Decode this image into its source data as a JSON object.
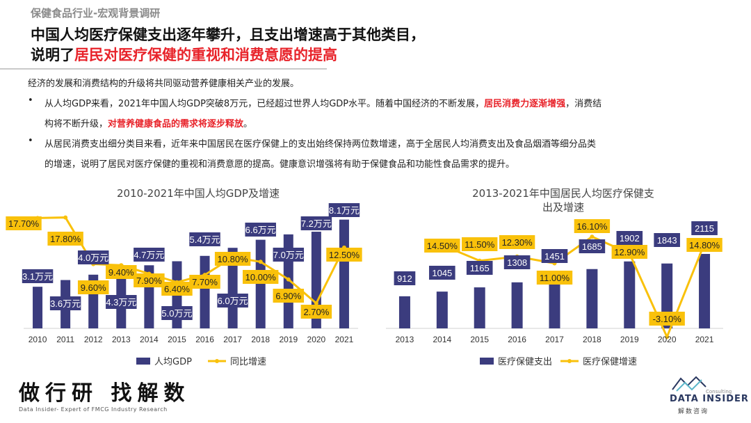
{
  "header": {
    "kicker": "保健食品行业-宏观背景调研",
    "title_line1": "中国人均医疗保健支出逐年攀升，且支出增速高于其他类目，",
    "title_line2_plain": "说明了",
    "title_line2_highlight": "居民对医疗保健的重视和消费意愿的提高"
  },
  "body": {
    "intro": "经济的发展和消费结构的升级将共同驱动营养健康相关产业的发展。",
    "bullet_symbol": "•",
    "bullet1_a": "从人均GDP来看，2021年中国人均GDP突破8万元，已经超过世界人均GDP水平。随着中国经济的不断发展，",
    "bullet1_red1": "居民消费力逐渐增强",
    "bullet1_b": "，消费结",
    "bullet1_c": "构将不断升级，",
    "bullet1_red2": "对营养健康食品的需求将逐步释放",
    "bullet1_d": "。",
    "bullet2_a": "从居民消费支出细分类目来看，近年来中国居民在医疗保健上的支出始终保持两位数增速，高于全居民人均消费支出及食品烟酒等细分品类",
    "bullet2_b": "的增速，说明了居民对医疗保健的重视和消费意愿的提高。健康意识增强将有助于保健食品和功能性食品需求的提升。"
  },
  "colors": {
    "bar": "#3b3c7e",
    "line": "#f9c10b",
    "accent_red": "#e8232a"
  },
  "chart_data": [
    {
      "type": "bar",
      "title": "2010-2021年中国人均GDP及增速",
      "categories": [
        "2010",
        "2011",
        "2012",
        "2013",
        "2014",
        "2015",
        "2016",
        "2017",
        "2018",
        "2019",
        "2020",
        "2021"
      ],
      "series": [
        {
          "name": "人均GDP",
          "kind": "bar",
          "values": [
            3.1,
            3.6,
            4.0,
            4.3,
            4.7,
            5.0,
            5.4,
            6.0,
            6.6,
            7.0,
            7.2,
            8.1
          ],
          "labels": [
            "3.1万元",
            "3.6万元",
            "4.0万元",
            "4.3万元",
            "4.7万元",
            "5.0万元",
            "5.4万元",
            "6.0万元",
            "6.6万元",
            "7.0万元",
            "7.2万元",
            "8.1万元"
          ]
        },
        {
          "name": "同比增速",
          "kind": "line",
          "values": [
            17.7,
            17.8,
            9.6,
            9.4,
            7.9,
            6.4,
            7.7,
            10.8,
            10.0,
            6.9,
            2.7,
            12.5
          ],
          "labels": [
            "17.70%",
            "17.80%",
            "9.60%",
            "9.40%",
            "7.90%",
            "6.40%",
            "7.70%",
            "10.80%",
            "10.00%",
            "6.90%",
            "2.70%",
            "12.50%"
          ]
        }
      ],
      "legend_position": "bottom"
    },
    {
      "type": "bar",
      "title": "2013-2021年中国居民人均医疗保健支出及增速",
      "categories": [
        "2013",
        "2014",
        "2015",
        "2016",
        "2017",
        "2018",
        "2019",
        "2020",
        "2021"
      ],
      "series": [
        {
          "name": "医疗保健支出",
          "kind": "bar",
          "values": [
            912,
            1045,
            1165,
            1308,
            1451,
            1685,
            1902,
            1843,
            2115
          ],
          "labels": [
            "912",
            "1045",
            "1165",
            "1308",
            "1451",
            "1685",
            "1902",
            "1843",
            "2115"
          ]
        },
        {
          "name": "医疗保健增速",
          "kind": "line",
          "values": [
            null,
            14.5,
            11.5,
            12.3,
            11.0,
            16.1,
            12.9,
            -3.1,
            14.8
          ],
          "labels": [
            "",
            "14.50%",
            "11.50%",
            "12.30%",
            "11.00%",
            "16.10%",
            "12.90%",
            "-3.10%",
            "14.80%"
          ]
        }
      ],
      "legend_position": "bottom"
    }
  ],
  "chart_titles": {
    "left": "2010-2021年中国人均GDP及增速",
    "right_line1": "2013-2021年中国居民人均医疗保健支",
    "right_line2": "出及增速"
  },
  "footer": {
    "slogan": "做行研 找解数",
    "tagline": "Data Insider- Expert of FMCG Industry Research",
    "logo_word": "DATA INSIDER",
    "logo_cn": "解数咨询",
    "logo_consulting": "Consulting"
  }
}
